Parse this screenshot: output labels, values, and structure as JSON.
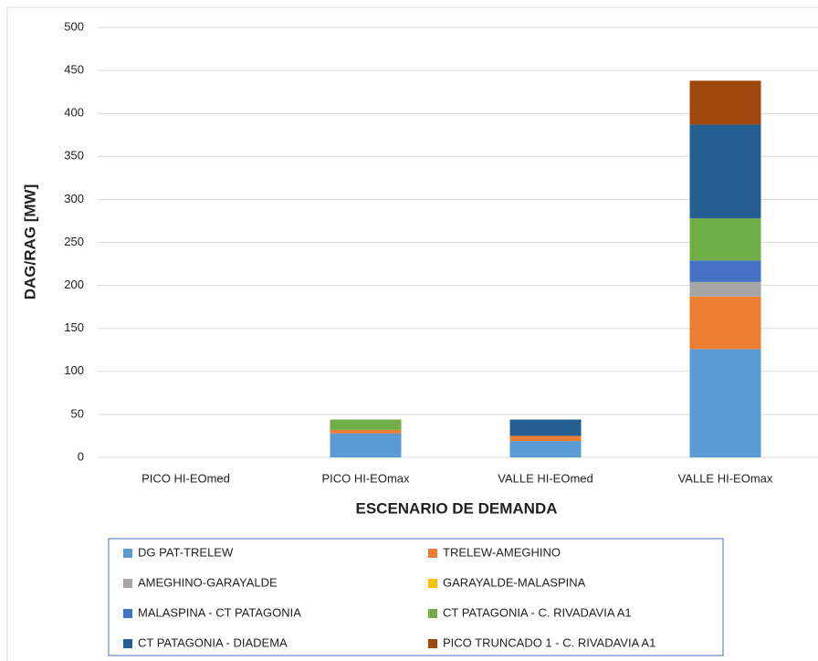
{
  "chart_data": {
    "type": "stacked_bar",
    "y_label": "DAG/RAG [MW]",
    "x_label": "ESCENARIO DE DEMANDA",
    "categories": [
      "PICO HI-EOmed",
      "PICO HI-EOmax",
      "VALLE HI-EOmed",
      "VALLE HI-EOmax"
    ],
    "series": [
      {
        "name": "DG PAT-TRELEW",
        "color": "#5b9bd5",
        "values": [
          0,
          28,
          19,
          126
        ]
      },
      {
        "name": "TRELEW-AMEGHINO",
        "color": "#ed7d31",
        "values": [
          0,
          4,
          6,
          61
        ]
      },
      {
        "name": "AMEGHINO-GARAYALDE",
        "color": "#a5a5a5",
        "values": [
          0,
          0,
          0,
          17
        ]
      },
      {
        "name": "GARAYALDE-MALASPINA",
        "color": "#ffc000",
        "values": [
          0,
          0,
          0,
          0
        ]
      },
      {
        "name": "MALASPINA - CT PATAGONIA",
        "color": "#4472c4",
        "values": [
          0,
          0,
          0,
          25
        ]
      },
      {
        "name": "CT PATAGONIA - C. RIVADAVIA A1",
        "color": "#70ad47",
        "values": [
          0,
          12,
          0,
          49
        ]
      },
      {
        "name": "CT PATAGONIA - DIADEMA",
        "color": "#255e91",
        "values": [
          0,
          0,
          19,
          109
        ]
      },
      {
        "name": "PICO TRUNCADO 1 - C. RIVADAVIA A1",
        "color": "#9e480e",
        "values": [
          0,
          0,
          0,
          51
        ]
      }
    ],
    "ylim": [
      0,
      500
    ],
    "yticks": [
      0,
      50,
      100,
      150,
      200,
      250,
      300,
      350,
      400,
      450,
      500
    ],
    "grid": true,
    "legend": "bottom"
  }
}
